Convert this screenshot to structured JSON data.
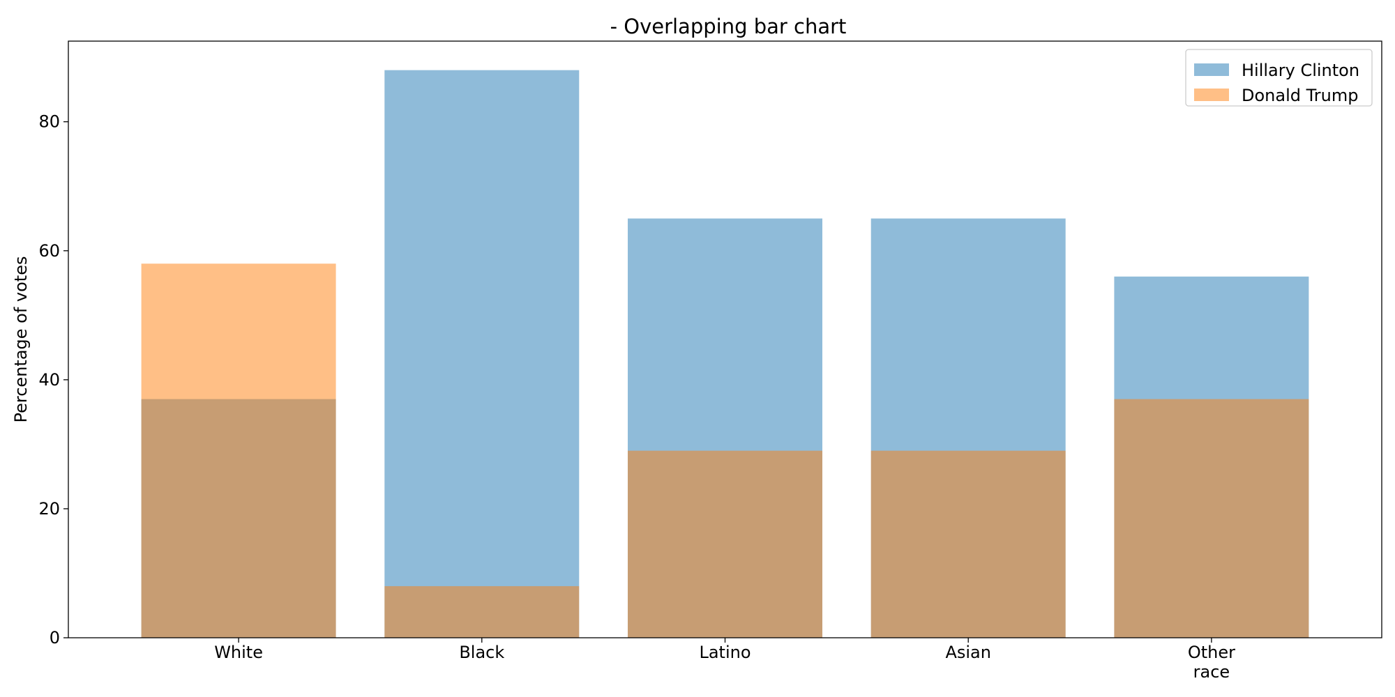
{
  "chart_data": {
    "type": "bar",
    "title": "- Overlapping bar chart",
    "xlabel": "",
    "ylabel": "Percentage of votes",
    "categories": [
      "White",
      "Black",
      "Latino",
      "Asian",
      "Other\nrace"
    ],
    "series": [
      {
        "name": "Hillary Clinton",
        "values": [
          37,
          88,
          65,
          65,
          56
        ],
        "color": "#1f77b4",
        "opacity": 0.5
      },
      {
        "name": "Donald Trump",
        "values": [
          58,
          8,
          29,
          29,
          37
        ],
        "color": "#ff7f0e",
        "opacity": 0.5
      }
    ],
    "ylim": [
      0,
      92.5
    ],
    "yticks": [
      0,
      20,
      40,
      60,
      80
    ],
    "grid": false,
    "legend_position": "top-right",
    "overlap": true
  }
}
